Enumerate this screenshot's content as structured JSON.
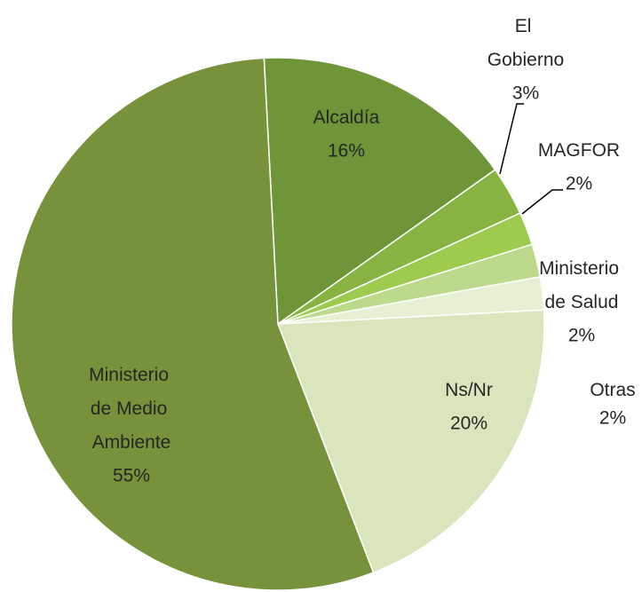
{
  "chart_data": {
    "type": "pie",
    "categories": [
      "Alcaldía",
      "El Gobierno",
      "MAGFOR",
      "Ministerio de Salud",
      "Otras",
      "Ns/Nr",
      "Ministerio de Medio Ambiente"
    ],
    "values": [
      16,
      3,
      2,
      2,
      2,
      20,
      55
    ],
    "value_labels": [
      "16%",
      "3%",
      "2%",
      "2%",
      "2%",
      "20%",
      "55%"
    ],
    "colors": [
      "#6e9638",
      "#86b342",
      "#9ccb50",
      "#bcd98c",
      "#e6f0d2",
      "#d8e5bd",
      "#77923a"
    ]
  }
}
